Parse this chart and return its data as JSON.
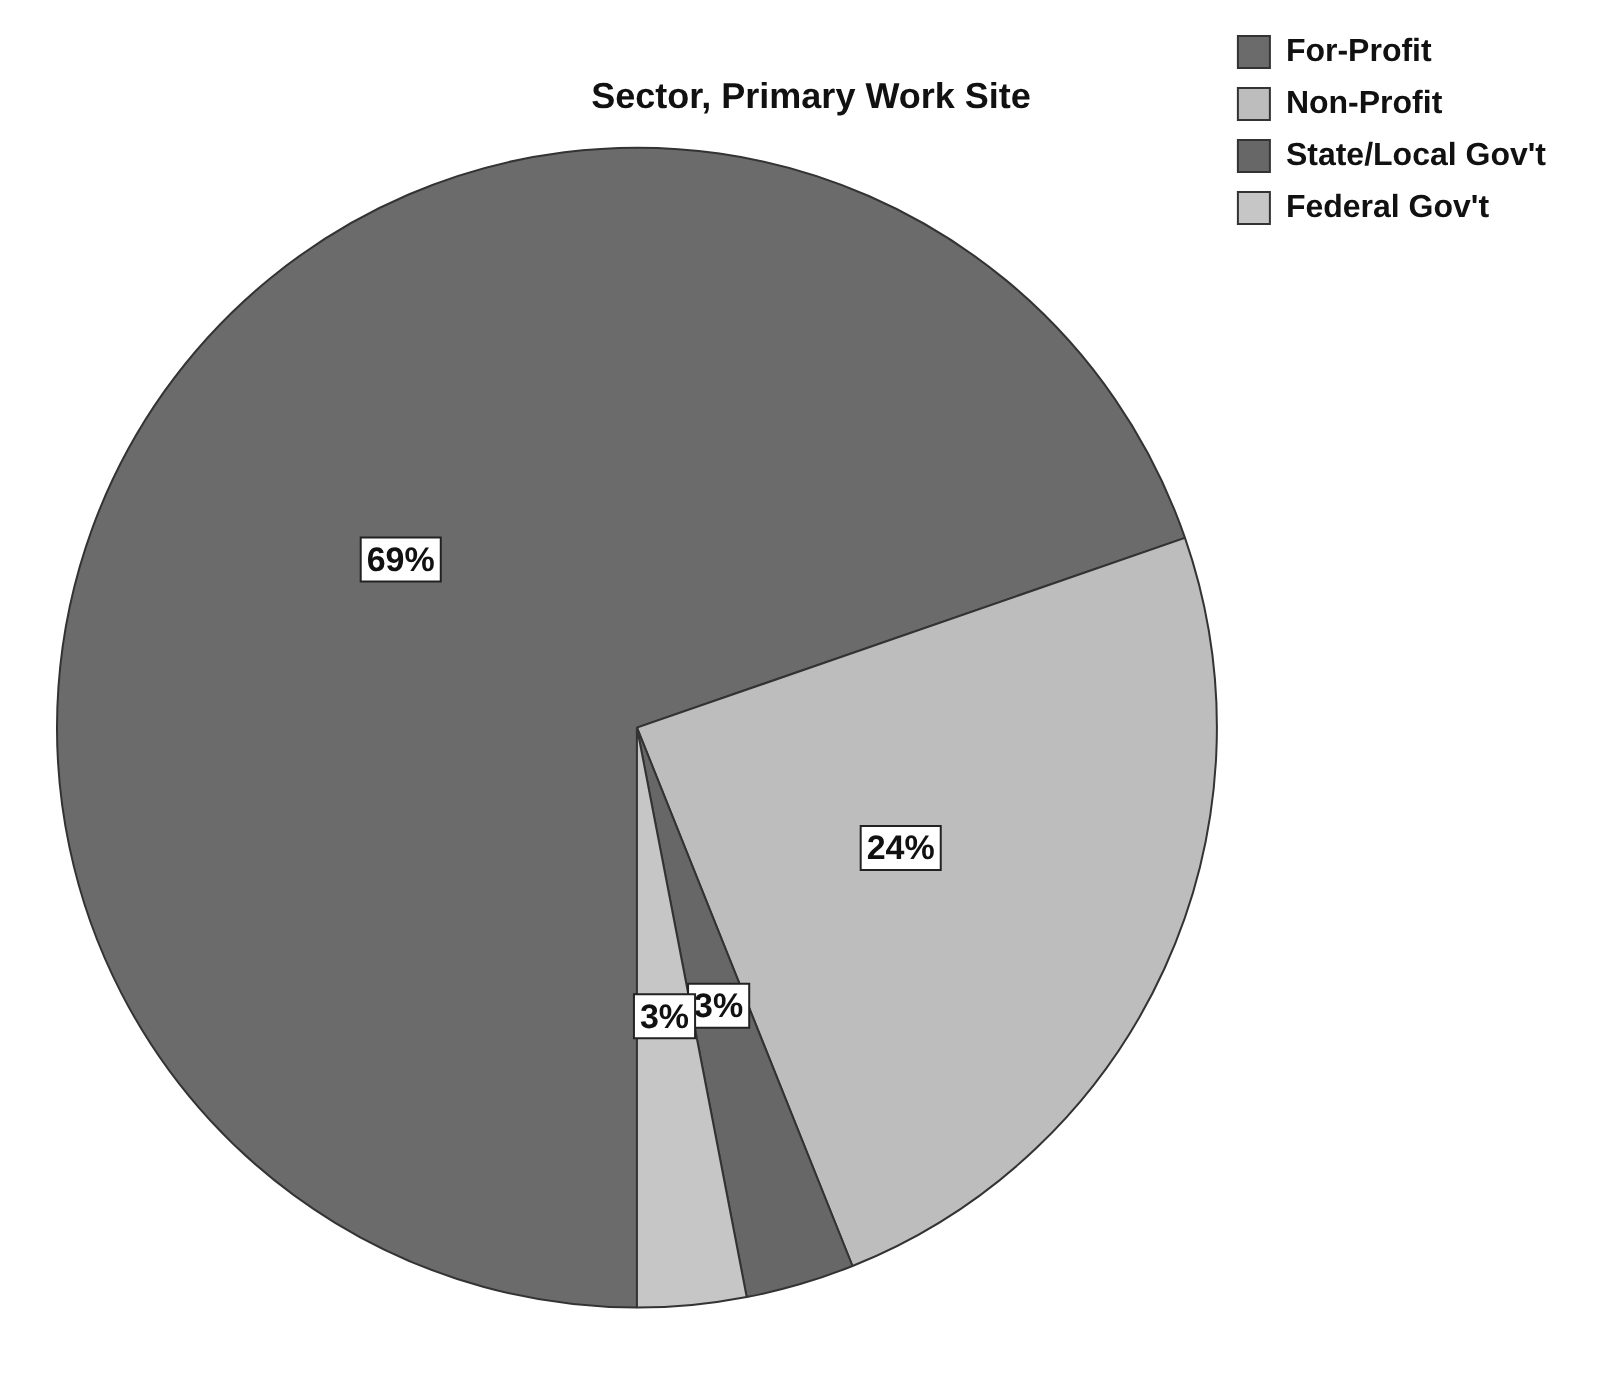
{
  "chart_data": {
    "type": "pie",
    "title": "Sector, Primary Work Site",
    "categories": [
      "For-Profit",
      "Non-Profit",
      "State/Local Gov't",
      "Federal Gov't"
    ],
    "values": [
      69,
      24,
      3,
      3
    ],
    "colors": [
      "#6b6b6b",
      "#bdbdbd",
      "#676767",
      "#c6c6c6"
    ],
    "value_labels": [
      "69%",
      "24%",
      "3%",
      "3%"
    ],
    "legend": "top right"
  }
}
